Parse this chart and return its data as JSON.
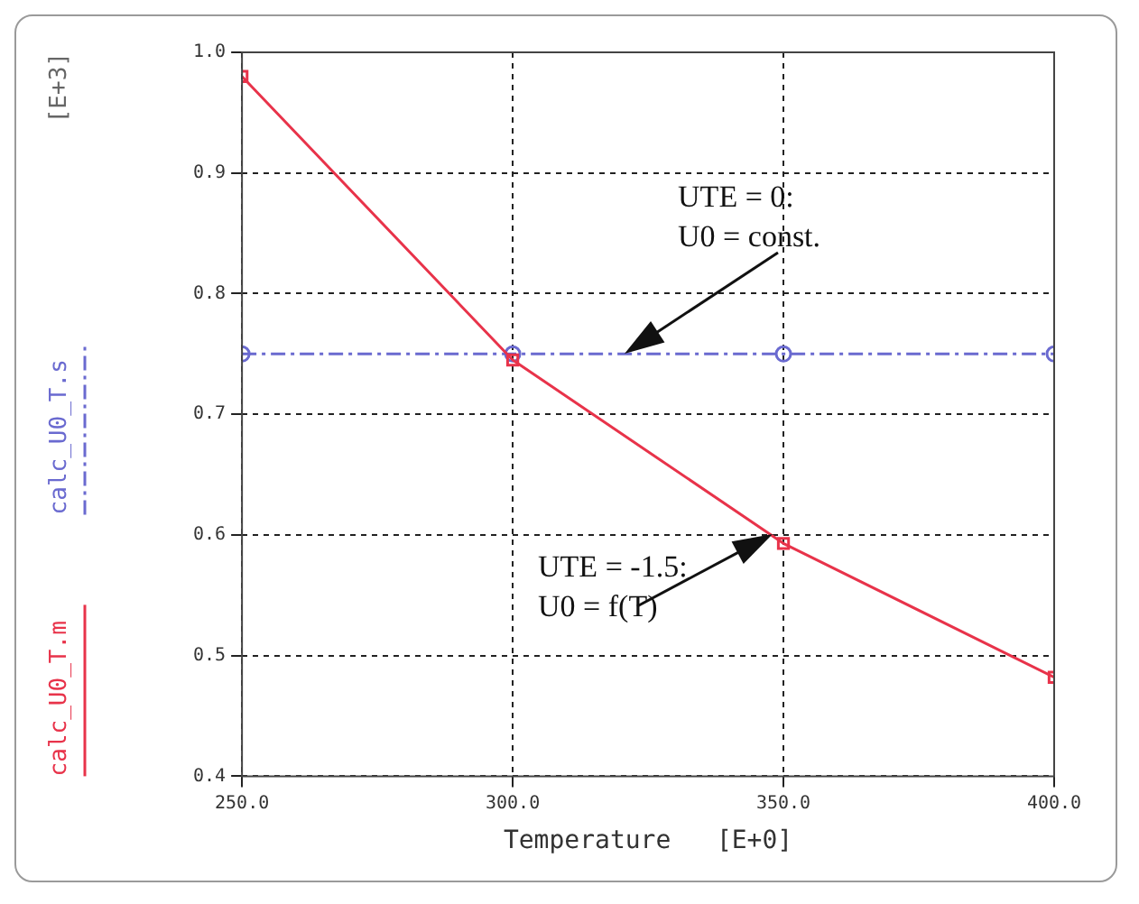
{
  "chart_data": {
    "type": "line",
    "xlabel": "Temperature   [E+0]",
    "x": [
      250,
      300,
      350,
      400
    ],
    "series": [
      {
        "name": "calc_U0_T.m",
        "color": "#e8334a",
        "values": [
          0.98,
          0.745,
          0.593,
          0.482
        ],
        "marker": "square",
        "line_style": "solid"
      },
      {
        "name": "calc_U0_T.s",
        "color": "#6a6ad0",
        "values": [
          0.75,
          0.75,
          0.75,
          0.75
        ],
        "marker": "circle",
        "line_style": "dashed"
      }
    ],
    "xlim": [
      250,
      400
    ],
    "xticks": [
      {
        "value": 250,
        "label": "250.0"
      },
      {
        "value": 300,
        "label": "300.0"
      },
      {
        "value": 350,
        "label": "350.0"
      },
      {
        "value": 400,
        "label": "400.0"
      }
    ],
    "ylim": [
      0.4,
      1.0
    ],
    "yticks": [
      {
        "value": 0.4,
        "label": "0.4"
      },
      {
        "value": 0.5,
        "label": "0.5"
      },
      {
        "value": 0.6,
        "label": "0.6"
      },
      {
        "value": 0.7,
        "label": "0.7"
      },
      {
        "value": 0.8,
        "label": "0.8"
      },
      {
        "value": 0.9,
        "label": "0.9"
      },
      {
        "value": 1.0,
        "label": "1.0"
      }
    ],
    "grid": true,
    "legend": "left",
    "annotations": [
      "[E+3]",
      "UTE = 0:\nU0 = const.",
      {
        "text": "UTE = -1.5:\nU0 = f(T)",
        "x": 348,
        "y": 0.6
      }
    ]
  }
}
